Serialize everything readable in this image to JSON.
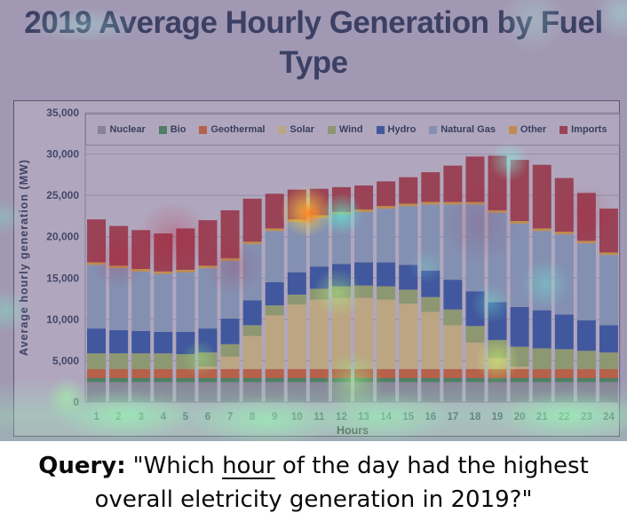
{
  "title": "2019 Average Hourly Generation by Fuel Type",
  "query": {
    "label": "Query:",
    "quote_open": "\"Which ",
    "underlined": "hour",
    "line1_rest": " of the day had the highest",
    "line2": "overall eletricity generation in 2019?\""
  },
  "chart_data": {
    "type": "bar",
    "stacked": true,
    "title": "2019 Average Hourly Generation by Fuel Type",
    "xlabel": "Hours",
    "ylabel": "Average hourly generation (MW)",
    "ylim": [
      0,
      35000
    ],
    "ytick_step": 5000,
    "ytick_labels": [
      "0",
      "5,000",
      "10,000",
      "15,000",
      "20,000",
      "25,000",
      "30,000",
      "35,000"
    ],
    "grid": true,
    "legend_position": "top",
    "categories": [
      "1",
      "2",
      "3",
      "4",
      "5",
      "6",
      "7",
      "8",
      "9",
      "10",
      "11",
      "12",
      "13",
      "14",
      "15",
      "16",
      "17",
      "18",
      "19",
      "20",
      "21",
      "22",
      "23",
      "24"
    ],
    "series": [
      {
        "name": "Nuclear",
        "color": "#8f8f97",
        "values": [
          2400,
          2400,
          2400,
          2400,
          2400,
          2400,
          2400,
          2400,
          2400,
          2400,
          2400,
          2400,
          2400,
          2400,
          2400,
          2400,
          2400,
          2400,
          2400,
          2400,
          2400,
          2400,
          2400,
          2400
        ]
      },
      {
        "name": "Bio",
        "color": "#3e8a4e",
        "values": [
          500,
          500,
          500,
          500,
          500,
          500,
          500,
          500,
          500,
          500,
          500,
          500,
          500,
          500,
          500,
          500,
          500,
          500,
          500,
          500,
          500,
          500,
          500,
          500
        ]
      },
      {
        "name": "Geothermal",
        "color": "#d26029",
        "values": [
          1100,
          1100,
          1100,
          1100,
          1100,
          1100,
          1100,
          1100,
          1100,
          1100,
          1100,
          1100,
          1100,
          1100,
          1100,
          1100,
          1100,
          1100,
          1100,
          1100,
          1100,
          1100,
          1100,
          1100
        ]
      },
      {
        "name": "Solar",
        "color": "#d9c179",
        "values": [
          0,
          0,
          0,
          0,
          0,
          300,
          1500,
          4000,
          6500,
          7800,
          8400,
          8600,
          8600,
          8400,
          7900,
          6900,
          5300,
          3200,
          1300,
          300,
          0,
          0,
          0,
          0
        ]
      },
      {
        "name": "Wind",
        "color": "#97ad62",
        "values": [
          1900,
          1900,
          1900,
          1900,
          1800,
          1700,
          1500,
          1300,
          1200,
          1200,
          1300,
          1400,
          1500,
          1600,
          1700,
          1800,
          1900,
          2000,
          2200,
          2400,
          2500,
          2400,
          2200,
          2000
        ]
      },
      {
        "name": "Hydro",
        "color": "#2b53a0",
        "values": [
          3000,
          2800,
          2700,
          2600,
          2700,
          2900,
          3100,
          3000,
          2800,
          2700,
          2700,
          2700,
          2800,
          2900,
          3000,
          3200,
          3600,
          4200,
          4600,
          4800,
          4600,
          4200,
          3700,
          3300
        ]
      },
      {
        "name": "Natural Gas",
        "color": "#8aa3bd",
        "values": [
          7700,
          7500,
          7200,
          7000,
          7200,
          7300,
          7000,
          6800,
          6200,
          6100,
          5900,
          6000,
          6100,
          6500,
          7100,
          8000,
          9100,
          10500,
          10800,
          10100,
          9600,
          9700,
          9300,
          8500
        ]
      },
      {
        "name": "Other",
        "color": "#dea02f",
        "values": [
          300,
          300,
          300,
          300,
          300,
          300,
          300,
          300,
          300,
          300,
          300,
          300,
          300,
          300,
          300,
          300,
          300,
          300,
          300,
          300,
          300,
          300,
          300,
          300
        ]
      },
      {
        "name": "Imports",
        "color": "#aa3339",
        "values": [
          5200,
          4800,
          4700,
          4600,
          5000,
          5500,
          5800,
          5200,
          4200,
          3600,
          3200,
          3000,
          2900,
          3000,
          3200,
          3600,
          4400,
          5500,
          6600,
          7400,
          7700,
          6500,
          5800,
          5300
        ]
      }
    ]
  }
}
